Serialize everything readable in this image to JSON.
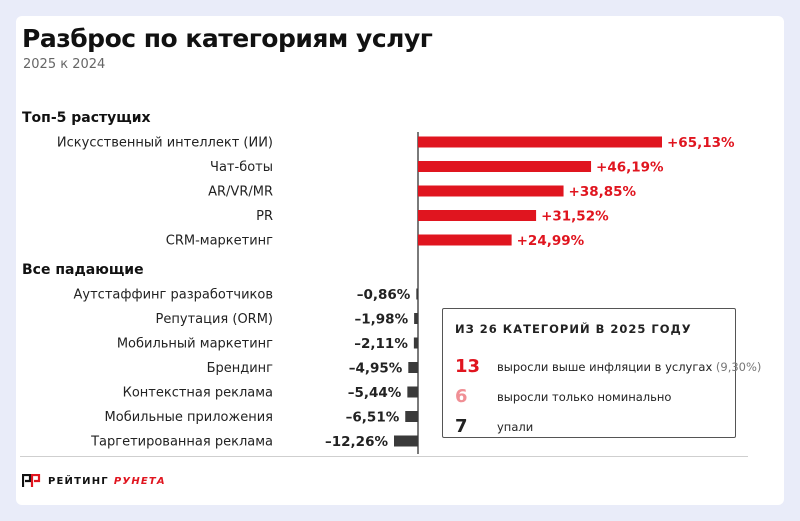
{
  "header": {
    "title": "Разброс по категориям услуг",
    "subtitle": "2025 к 2024"
  },
  "colors": {
    "growth": "#e0151f",
    "decline": "#3a3a3a",
    "nominal": "#f08f95"
  },
  "chart_data": {
    "type": "bar",
    "orientation": "horizontal",
    "title": "Разброс по категориям услуг",
    "subtitle": "2025 к 2024",
    "groups": [
      {
        "name": "Топ-5 растущих",
        "categories": [
          "Искусственный интеллект (ИИ)",
          "Чат-боты",
          "AR/VR/MR",
          "PR",
          "CRM-маркетинг"
        ],
        "values": [
          65.13,
          46.19,
          38.85,
          31.52,
          24.99
        ],
        "labels": [
          "+65,13%",
          "+46,19%",
          "+38,85%",
          "+31,52%",
          "+24,99%"
        ]
      },
      {
        "name": "Все падающие",
        "categories": [
          "Аутстаффинг разработчиков",
          "Репутация (ORM)",
          "Мобильный маркетинг",
          "Брендинг",
          "Контекстная реклама",
          "Мобильные приложения",
          "Таргетированная реклама"
        ],
        "values": [
          -0.86,
          -1.98,
          -2.11,
          -4.95,
          -5.44,
          -6.51,
          -12.26
        ],
        "labels": [
          "–0,86%",
          "–1,98%",
          "–2,11%",
          "–4,95%",
          "–5,44%",
          "–6,51%",
          "–12,26%"
        ]
      }
    ],
    "grid": false,
    "legend": "none"
  },
  "summary": {
    "title": "ИЗ 26 КАТЕГОРИЙ В 2025 ГОДУ",
    "rows": [
      {
        "number": "13",
        "text": "выросли выше инфляции в услугах",
        "note": "(9,30%)"
      },
      {
        "number": "6",
        "text": "выросли только номинально",
        "note": ""
      },
      {
        "number": "7",
        "text": "упали",
        "note": ""
      }
    ]
  },
  "logo": {
    "text1": "РЕЙТИНГ",
    "text2": "РУНЕТА"
  }
}
